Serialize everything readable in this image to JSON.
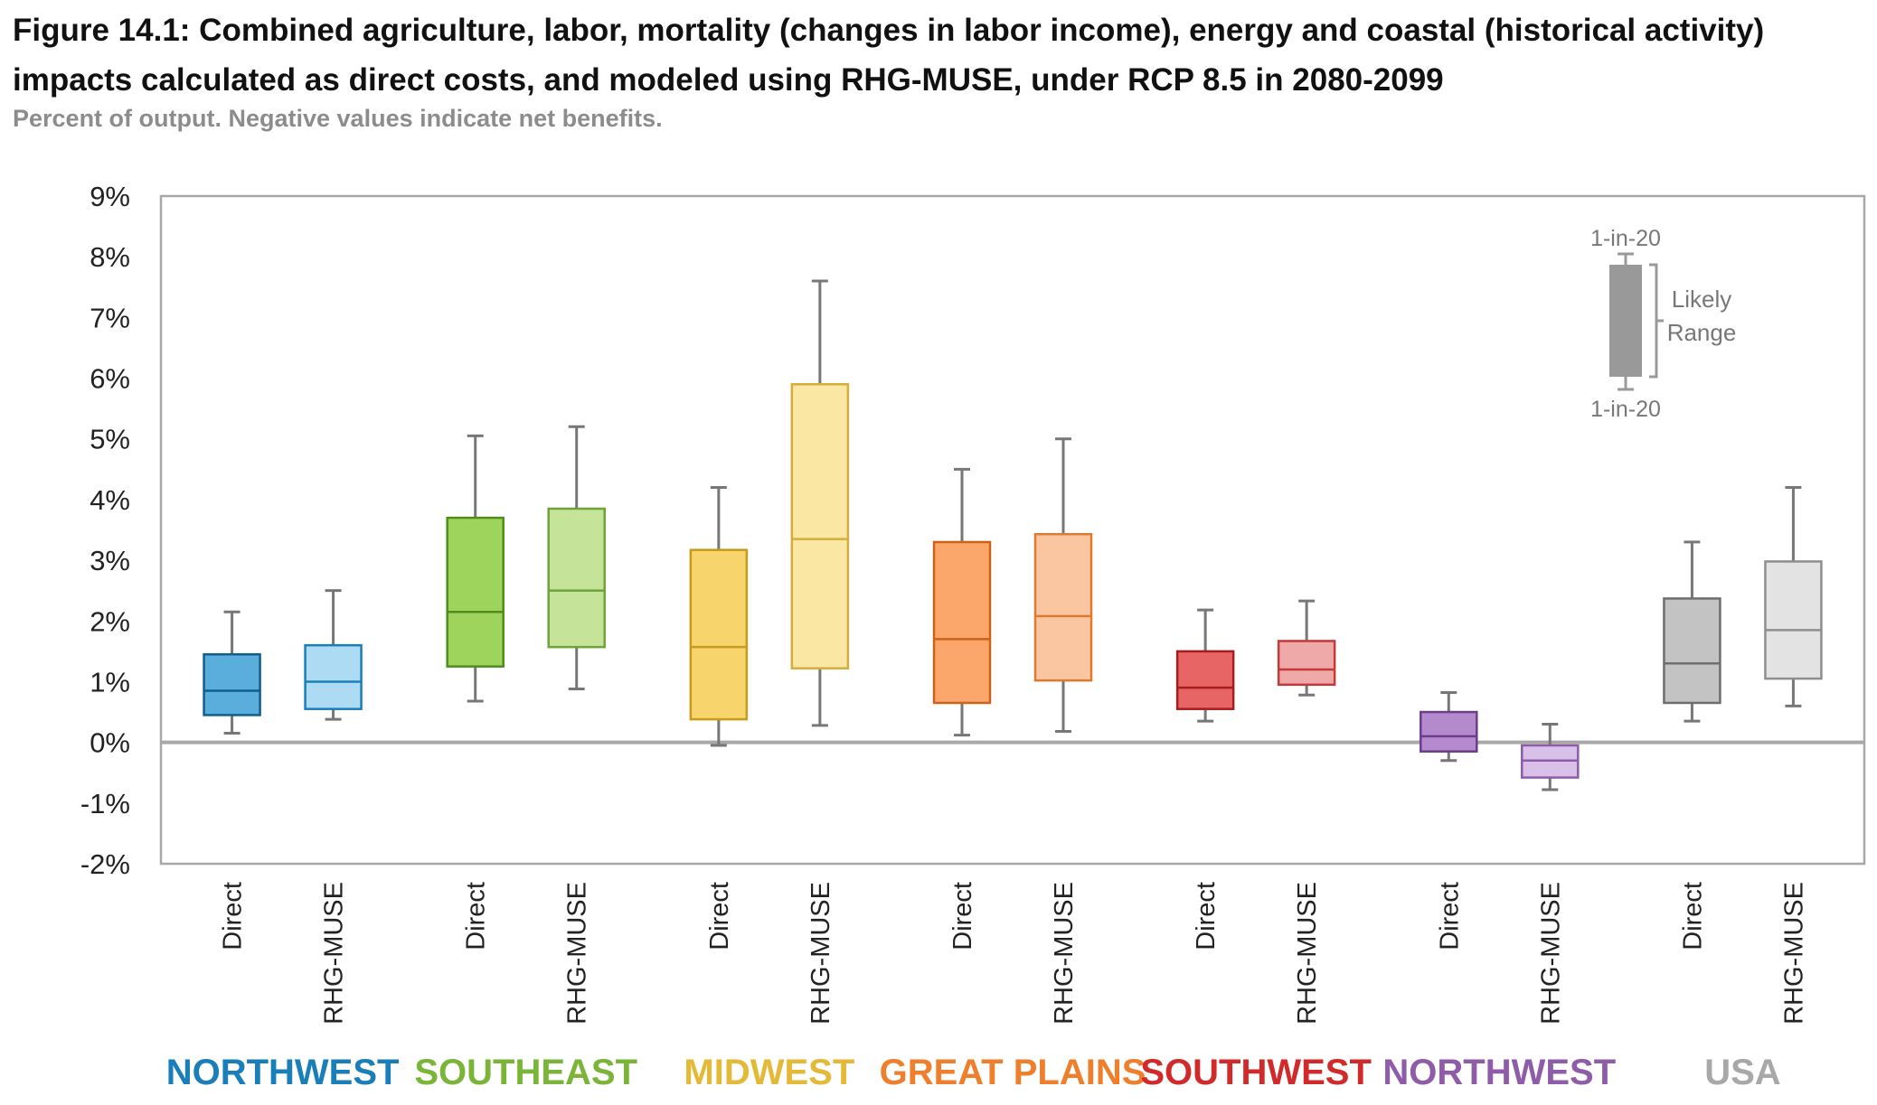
{
  "title": "Figure 14.1: Combined agriculture, labor, mortality (changes in labor income), energy and coastal (historical activity) impacts calculated as direct costs, and modeled using RHG-MUSE, under RCP 8.5 in 2080-2099",
  "subtitle": "Percent of output. Negative values indicate net benefits.",
  "chart_data": {
    "type": "boxplot",
    "y_unit": "%",
    "ylim": [
      -2,
      9
    ],
    "y_ticks": [
      "9%",
      "8%",
      "7%",
      "6%",
      "5%",
      "4%",
      "3%",
      "2%",
      "1%",
      "0%",
      "-1%",
      "-2%"
    ],
    "grid": false,
    "legend": {
      "placement": "top-right",
      "top_label": "1-in-20",
      "bottom_label": "1-in-20",
      "range_label_line1": "Likely",
      "range_label_line2": "Range",
      "color": "#999999"
    },
    "groups": [
      {
        "name": "NORTHWEST",
        "color": "#1a7fb8",
        "boxes": [
          {
            "label": "Direct",
            "whisker_low": 0.15,
            "q1": 0.45,
            "median": 0.85,
            "q3": 1.45,
            "whisker_high": 2.15,
            "fill": "#5aaedc",
            "stroke": "#0e5f8c"
          },
          {
            "label": "RHG-MUSE",
            "whisker_low": 0.38,
            "q1": 0.55,
            "median": 1.0,
            "q3": 1.6,
            "whisker_high": 2.5,
            "fill": "#aedbf4",
            "stroke": "#1a7fb8"
          }
        ]
      },
      {
        "name": "SOUTHEAST",
        "color": "#7ab53a",
        "boxes": [
          {
            "label": "Direct",
            "whisker_low": 0.68,
            "q1": 1.25,
            "median": 2.15,
            "q3": 3.7,
            "whisker_high": 5.05,
            "fill": "#9fd45c",
            "stroke": "#4f8c1e"
          },
          {
            "label": "RHG-MUSE",
            "whisker_low": 0.88,
            "q1": 1.57,
            "median": 2.5,
            "q3": 3.85,
            "whisker_high": 5.2,
            "fill": "#c5e49a",
            "stroke": "#6ea33a"
          }
        ]
      },
      {
        "name": "MIDWEST",
        "color": "#e5b938",
        "boxes": [
          {
            "label": "Direct",
            "whisker_low": -0.05,
            "q1": 0.38,
            "median": 1.57,
            "q3": 3.17,
            "whisker_high": 4.2,
            "fill": "#f8d46c",
            "stroke": "#c79a18"
          },
          {
            "label": "RHG-MUSE",
            "whisker_low": 0.28,
            "q1": 1.22,
            "median": 3.35,
            "q3": 5.9,
            "whisker_high": 7.6,
            "fill": "#fbe7a4",
            "stroke": "#d7ad38"
          }
        ]
      },
      {
        "name": "GREAT PLAINS",
        "color": "#ee7f2c",
        "boxes": [
          {
            "label": "Direct",
            "whisker_low": 0.12,
            "q1": 0.65,
            "median": 1.7,
            "q3": 3.3,
            "whisker_high": 4.5,
            "fill": "#fba76c",
            "stroke": "#cf6218"
          },
          {
            "label": "RHG-MUSE",
            "whisker_low": 0.18,
            "q1": 1.02,
            "median": 2.08,
            "q3": 3.43,
            "whisker_high": 5.0,
            "fill": "#fac6a2",
            "stroke": "#dd7a30"
          }
        ]
      },
      {
        "name": "SOUTHWEST",
        "color": "#d02a2a",
        "boxes": [
          {
            "label": "Direct",
            "whisker_low": 0.35,
            "q1": 0.55,
            "median": 0.9,
            "q3": 1.5,
            "whisker_high": 2.18,
            "fill": "#e86565",
            "stroke": "#a81c1c"
          },
          {
            "label": "RHG-MUSE",
            "whisker_low": 0.78,
            "q1": 0.95,
            "median": 1.2,
            "q3": 1.67,
            "whisker_high": 2.33,
            "fill": "#f0a9a9",
            "stroke": "#c33a3a"
          }
        ]
      },
      {
        "name": "NORTHWEST",
        "color": "#8e5ca8",
        "boxes": [
          {
            "label": "Direct",
            "whisker_low": -0.3,
            "q1": -0.15,
            "median": 0.1,
            "q3": 0.5,
            "whisker_high": 0.82,
            "fill": "#b48acf",
            "stroke": "#6d3d8a"
          },
          {
            "label": "RHG-MUSE",
            "whisker_low": -0.78,
            "q1": -0.58,
            "median": -0.3,
            "q3": -0.05,
            "whisker_high": 0.3,
            "fill": "#d8c0e8",
            "stroke": "#8e5ca8"
          }
        ]
      },
      {
        "name": "USA",
        "color": "#a8a8a8",
        "boxes": [
          {
            "label": "Direct",
            "whisker_low": 0.35,
            "q1": 0.65,
            "median": 1.3,
            "q3": 2.37,
            "whisker_high": 3.3,
            "fill": "#c3c3c3",
            "stroke": "#6e6e6e"
          },
          {
            "label": "RHG-MUSE",
            "whisker_low": 0.6,
            "q1": 1.05,
            "median": 1.85,
            "q3": 2.98,
            "whisker_high": 4.2,
            "fill": "#e3e3e3",
            "stroke": "#8e8e8e"
          }
        ]
      }
    ]
  }
}
